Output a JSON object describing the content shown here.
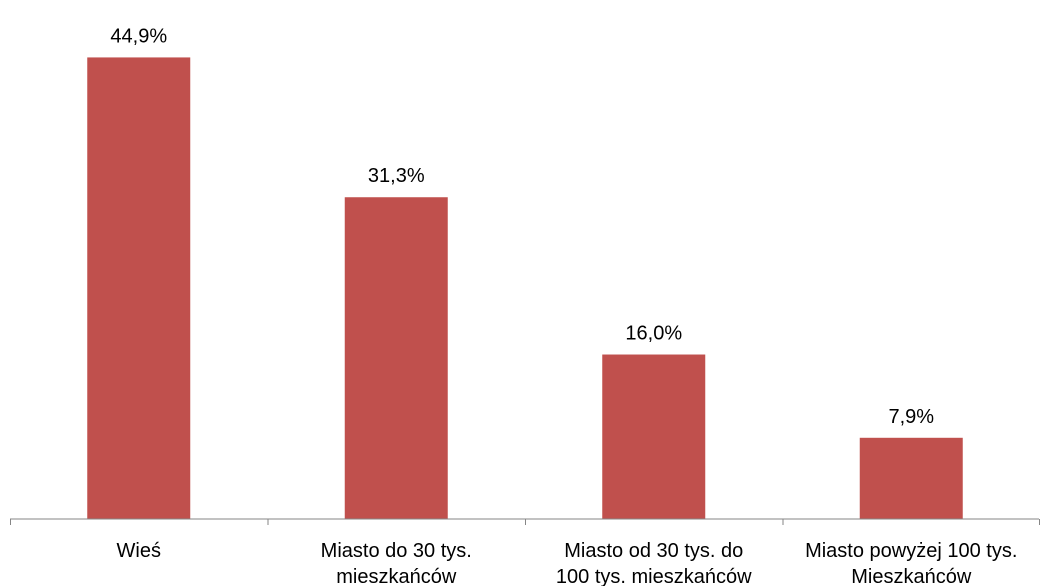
{
  "chart_data": {
    "type": "bar",
    "categories": [
      [
        "Wieś"
      ],
      [
        "Miasto do 30 tys.",
        "mieszkańców"
      ],
      [
        "Miasto od 30 tys. do",
        "100 tys. mieszkańców"
      ],
      [
        "Miasto powyżej 100 tys.",
        "Mieszkańców"
      ]
    ],
    "values": [
      44.9,
      31.3,
      16.0,
      7.9
    ],
    "value_labels": [
      "44,9%",
      "31,3%",
      "16,0%",
      "7,9%"
    ],
    "title": "",
    "xlabel": "",
    "ylabel": "",
    "ylim": [
      0,
      50
    ],
    "grid": false,
    "legend": "none",
    "bar_color": "#C0504D",
    "axis_color": "#868686"
  }
}
